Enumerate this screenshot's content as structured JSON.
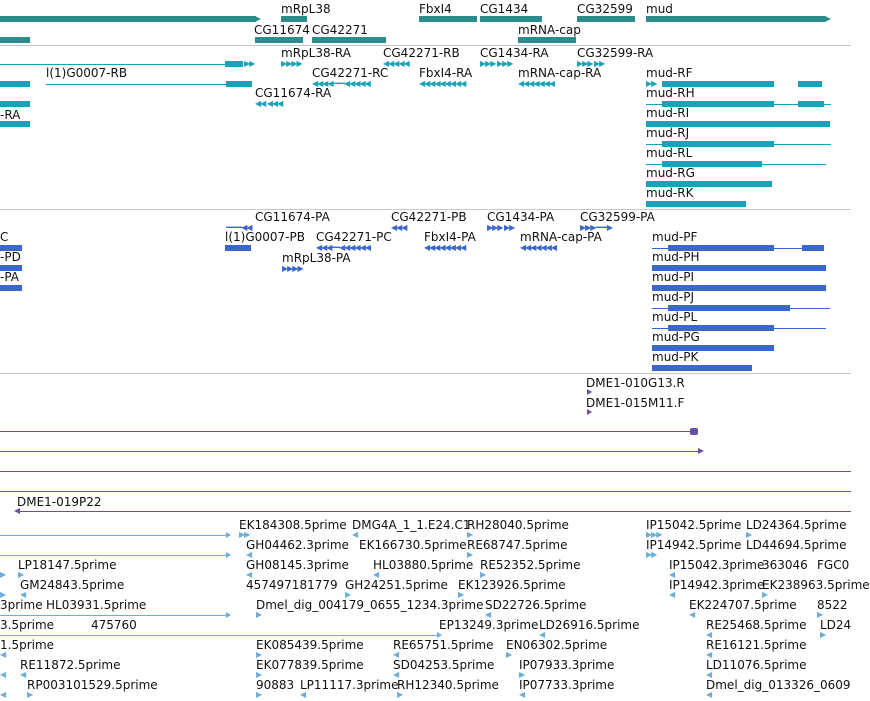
{
  "colors": {
    "gene": "#2e8b8b",
    "transcript": "#1aa3b8",
    "protein": "#3a67cc",
    "clone": "#6b4fa3",
    "est": "#6aaedc",
    "separator": "#c8c8c8"
  },
  "tracks": {
    "genes": {
      "labels": [
        "mRpL38",
        "CG11674",
        "CG42271",
        "FbxI4",
        "CG1434",
        "CG32599",
        "mud",
        "mRNA-cap"
      ]
    },
    "transcripts": {
      "labels": [
        "mRpL38-RA",
        "CG42271-RB",
        "CG1434-RA",
        "CG32599-RA",
        "l(1)G0007-RB",
        "CG42271-RC",
        "FbxI4-RA",
        "mRNA-cap-RA",
        "mud-RF",
        "CG11674-RA",
        "mud-RH",
        "-RA",
        "mud-RI",
        "mud-RJ",
        "mud-RL",
        "mud-RG",
        "mud-RK"
      ]
    },
    "proteins": {
      "labels": [
        "CG11674-PA",
        "CG42271-PB",
        "CG1434-PA",
        "CG32599-PA",
        "C",
        "l(1)G0007-PB",
        "CG42271-PC",
        "FbxI4-PA",
        "mRNA-cap-PA",
        "mud-PF",
        "-PD",
        "mRpL38-PA",
        "mud-PH",
        "-PA",
        "mud-PI",
        "mud-PJ",
        "mud-PL",
        "mud-PG",
        "mud-PK"
      ]
    },
    "clones": {
      "labels": [
        "DME1-010G13.R",
        "DME1-015M11.F",
        "DME1-019P22"
      ]
    },
    "ests": {
      "labels": [
        "EK184308.5prime",
        "DMG4A_1_1.E24.C1",
        "RH28040.5prime",
        "IP15042.5prime",
        "LD24364.5prime",
        "GH04462.3prime",
        "EK166730.5prime",
        "RE68747.5prime",
        "IP14942.5prime",
        "LD44694.5prime",
        "LP18147.5prime",
        "GH08145.3prime",
        "HL03880.5prime",
        "RE52352.5prime",
        "IP15042.3prime",
        "363046",
        "FGC0",
        "GM24843.5prime",
        "457497181779",
        "GH24251.5prime",
        "EK123926.5prime",
        "IP14942.3prime",
        "EK238963.5prime",
        "3prime",
        "HL03931.5prime",
        "Dmel_dig_004179_0655_1234.3prime",
        "SD22726.5prime",
        "EK224707.5prime",
        "8522",
        "3.5prime",
        "475760",
        "EP13249.3prime",
        "LD26916.5prime",
        "RE25468.5prime",
        "LD24",
        "1.5prime",
        "EK085439.5prime",
        "RE65751.5prime",
        "EN06302.5prime",
        "RE16121.5prime",
        "RE11872.5prime",
        "EK077839.5prime",
        "SD04253.5prime",
        "IP07933.3prime",
        "LD11076.5prime",
        "RP003101529.5prime",
        "90883",
        "LP11117.3prime",
        "RH12340.5prime",
        "IP07733.3prime",
        "Dmel_dig_013326_0609"
      ]
    }
  }
}
